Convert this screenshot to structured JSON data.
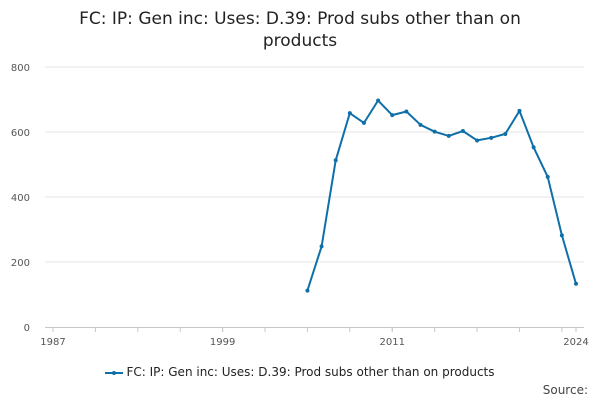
{
  "chart_data": {
    "type": "line",
    "title": "FC: IP: Gen inc: Uses: D.39: Prod subs other than on products",
    "xlim": [
      1987,
      2024
    ],
    "ylim": [
      0,
      800
    ],
    "x_ticks": [
      1987,
      1999,
      2011,
      2024
    ],
    "y_ticks": [
      0,
      200,
      400,
      600,
      800
    ],
    "grid": "horizontal",
    "legend_position": "bottom",
    "series": [
      {
        "name": "FC: IP: Gen inc: Uses: D.39: Prod subs other than on products",
        "color": "#0f6fa8",
        "x": [
          2005,
          2006,
          2007,
          2008,
          2009,
          2010,
          2011,
          2012,
          2013,
          2014,
          2015,
          2016,
          2017,
          2018,
          2019,
          2020,
          2021,
          2022,
          2023,
          2024
        ],
        "y": [
          112,
          248,
          513,
          658,
          628,
          697,
          652,
          663,
          622,
          601,
          588,
          603,
          574,
          582,
          594,
          665,
          553,
          462,
          282,
          133
        ]
      }
    ]
  },
  "source_label": "Source:"
}
